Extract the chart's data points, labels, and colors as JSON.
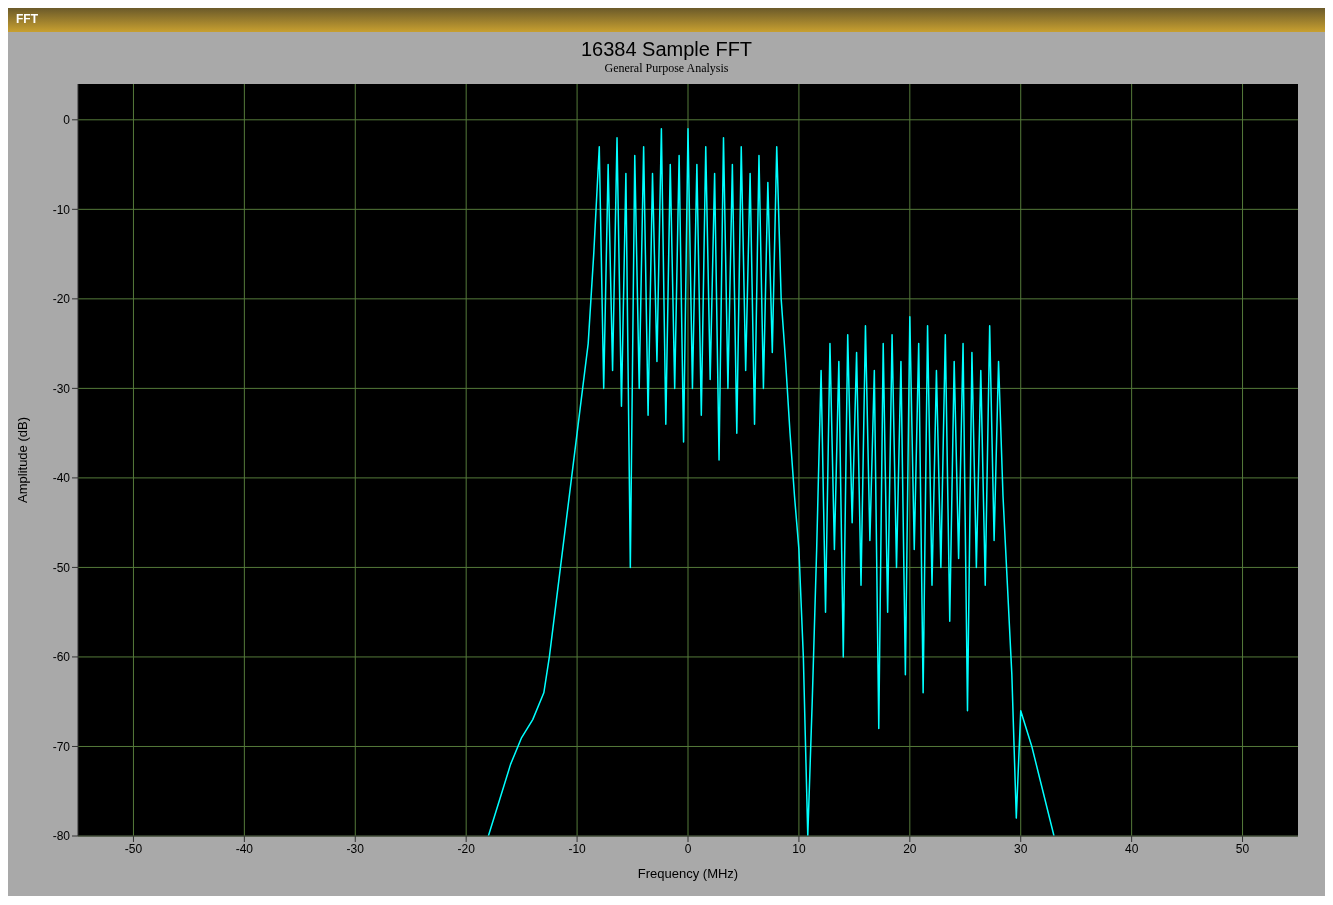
{
  "chart_data": {
    "type": "line",
    "title": "16384 Sample FFT",
    "subtitle": "General Purpose Analysis",
    "xlabel": "Frequency (MHz)",
    "ylabel": "Amplitude (dB)",
    "annotations": [
      "FFT"
    ],
    "x": [
      -18,
      -17,
      -16,
      -15,
      -14,
      -13,
      -12.5,
      -12,
      -11.5,
      -11,
      -10.5,
      -10,
      -9.5,
      -9,
      -8.5,
      -8,
      -7.6,
      -7.2,
      -6.8,
      -6.4,
      -6,
      -5.6,
      -5.2,
      -4.8,
      -4.4,
      -4,
      -3.6,
      -3.2,
      -2.8,
      -2.4,
      -2,
      -1.6,
      -1.2,
      -0.8,
      -0.4,
      0,
      0.4,
      0.8,
      1.2,
      1.6,
      2,
      2.4,
      2.8,
      3.2,
      3.6,
      4,
      4.4,
      4.8,
      5.2,
      5.6,
      6,
      6.4,
      6.8,
      7.2,
      7.6,
      8,
      8.4,
      8.8,
      9.2,
      9.6,
      10,
      10.4,
      10.8,
      11.2,
      11.6,
      12,
      12.4,
      12.8,
      13.2,
      13.6,
      14,
      14.4,
      14.8,
      15.2,
      15.6,
      16,
      16.4,
      16.8,
      17.2,
      17.6,
      18,
      18.4,
      18.8,
      19.2,
      19.6,
      20,
      20.4,
      20.8,
      21.2,
      21.6,
      22,
      22.4,
      22.8,
      23.2,
      23.6,
      24,
      24.4,
      24.8,
      25.2,
      25.6,
      26,
      26.4,
      26.8,
      27.2,
      27.6,
      28,
      28.4,
      28.8,
      29.2,
      29.6,
      30,
      31,
      32,
      33
    ],
    "series": [
      {
        "color": "#00ffff",
        "values": [
          -80,
          -76,
          -72,
          -69,
          -67,
          -64,
          -60,
          -55,
          -50,
          -45,
          -40,
          -35,
          -30,
          -25,
          -15,
          -3,
          -30,
          -5,
          -28,
          -2,
          -32,
          -6,
          -50,
          -4,
          -30,
          -3,
          -33,
          -6,
          -27,
          -1,
          -34,
          -5,
          -30,
          -4,
          -36,
          -1,
          -30,
          -5,
          -33,
          -3,
          -29,
          -6,
          -38,
          -2,
          -30,
          -5,
          -35,
          -3,
          -28,
          -6,
          -34,
          -4,
          -30,
          -7,
          -26,
          -3,
          -20,
          -27,
          -35,
          -42,
          -48,
          -60,
          -80,
          -65,
          -48,
          -28,
          -55,
          -25,
          -48,
          -27,
          -60,
          -24,
          -45,
          -26,
          -52,
          -23,
          -47,
          -28,
          -68,
          -25,
          -55,
          -24,
          -50,
          -27,
          -62,
          -22,
          -48,
          -25,
          -64,
          -23,
          -52,
          -28,
          -50,
          -24,
          -56,
          -27,
          -49,
          -25,
          -66,
          -26,
          -50,
          -28,
          -52,
          -23,
          -47,
          -27,
          -42,
          -52,
          -62,
          -78,
          -66,
          -70,
          -75,
          -80
        ]
      }
    ],
    "xlim": [
      -55,
      55
    ],
    "ylim": [
      -80,
      4
    ],
    "xticks": [
      -50,
      -40,
      -30,
      -20,
      -10,
      0,
      10,
      20,
      30,
      40,
      50
    ],
    "yticks": [
      -80,
      -70,
      -60,
      -50,
      -40,
      -30,
      -20,
      -10,
      0
    ],
    "grid": true
  }
}
